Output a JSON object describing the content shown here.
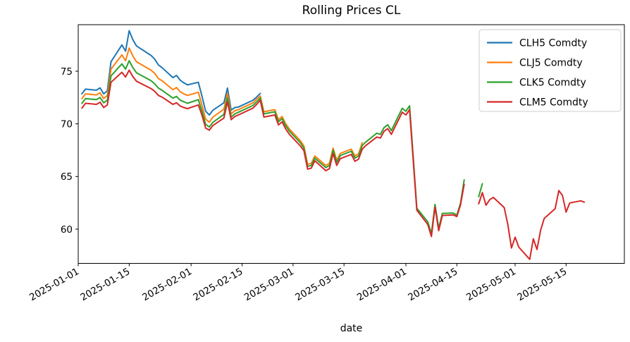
{
  "chart_data": {
    "type": "line",
    "title": "Rolling Prices CL",
    "xlabel": "date",
    "ylabel": "",
    "grid": false,
    "legend_position": "upper right",
    "xlim": [
      "2025-01-01",
      "2025-05-31"
    ],
    "ylim": [
      56.75,
      79.42
    ],
    "yticks": [
      60,
      65,
      70,
      75
    ],
    "xticks": [
      "2025-01-01",
      "2025-01-15",
      "2025-02-01",
      "2025-02-15",
      "2025-03-01",
      "2025-03-15",
      "2025-04-01",
      "2025-04-15",
      "2025-05-01",
      "2025-05-15"
    ],
    "x_tick_rotation_deg": 30,
    "dates": [
      "2025-01-02",
      "2025-01-03",
      "2025-01-06",
      "2025-01-07",
      "2025-01-08",
      "2025-01-09",
      "2025-01-10",
      "2025-01-13",
      "2025-01-14",
      "2025-01-15",
      "2025-01-16",
      "2025-01-17",
      "2025-01-21",
      "2025-01-22",
      "2025-01-23",
      "2025-01-24",
      "2025-01-27",
      "2025-01-28",
      "2025-01-29",
      "2025-01-30",
      "2025-01-31",
      "2025-02-03",
      "2025-02-04",
      "2025-02-05",
      "2025-02-06",
      "2025-02-07",
      "2025-02-10",
      "2025-02-11",
      "2025-02-12",
      "2025-02-13",
      "2025-02-14",
      "2025-02-18",
      "2025-02-19",
      "2025-02-20",
      "2025-02-21",
      "2025-02-24",
      "2025-02-25",
      "2025-02-26",
      "2025-02-27",
      "2025-02-28",
      "2025-03-03",
      "2025-03-04",
      "2025-03-05",
      "2025-03-06",
      "2025-03-07",
      "2025-03-10",
      "2025-03-11",
      "2025-03-12",
      "2025-03-13",
      "2025-03-14",
      "2025-03-17",
      "2025-03-18",
      "2025-03-19",
      "2025-03-20",
      "2025-03-21",
      "2025-03-24",
      "2025-03-25",
      "2025-03-26",
      "2025-03-27",
      "2025-03-28",
      "2025-03-31",
      "2025-04-01",
      "2025-04-02",
      "2025-04-03",
      "2025-04-04",
      "2025-04-07",
      "2025-04-08",
      "2025-04-09",
      "2025-04-10",
      "2025-04-11",
      "2025-04-14",
      "2025-04-15",
      "2025-04-16",
      "2025-04-17",
      "2025-04-18",
      "2025-04-21",
      "2025-04-22",
      "2025-04-23",
      "2025-04-24",
      "2025-04-25",
      "2025-04-28",
      "2025-04-29",
      "2025-04-30",
      "2025-05-01",
      "2025-05-02",
      "2025-05-05",
      "2025-05-06",
      "2025-05-07",
      "2025-05-08",
      "2025-05-09",
      "2025-05-12",
      "2025-05-13",
      "2025-05-14",
      "2025-05-15",
      "2025-05-16",
      "2025-05-19",
      "2025-05-20"
    ],
    "series": [
      {
        "name": "CLH5 Comdty",
        "color": "#1f77b4",
        "values": [
          72.86,
          73.3,
          73.2,
          73.42,
          72.85,
          73.15,
          75.9,
          77.5,
          76.9,
          78.85,
          78.0,
          77.4,
          76.5,
          76.15,
          75.6,
          75.35,
          74.4,
          74.6,
          74.15,
          73.9,
          73.7,
          73.95,
          72.6,
          71.2,
          70.85,
          71.3,
          72.0,
          73.4,
          71.3,
          71.55,
          71.6,
          72.25,
          72.55,
          72.9,
          null,
          null,
          null,
          null,
          null,
          null,
          null,
          null,
          null,
          null,
          null,
          null,
          null,
          null,
          null,
          null,
          null,
          null,
          null,
          null,
          null,
          null,
          null,
          null,
          null,
          null,
          null,
          null,
          null,
          null,
          null,
          null,
          null,
          null,
          null,
          null,
          null,
          null,
          null,
          null,
          null,
          null,
          null,
          null,
          null,
          null,
          null,
          null,
          null,
          null,
          null,
          null,
          null,
          null,
          null,
          null,
          null,
          null,
          null,
          null,
          null,
          null,
          null
        ]
      },
      {
        "name": "CLJ5 Comdty",
        "color": "#ff7f0e",
        "values": [
          72.4,
          72.85,
          72.75,
          72.95,
          72.4,
          72.7,
          75.2,
          76.55,
          76.0,
          77.2,
          76.45,
          75.9,
          75.1,
          74.8,
          74.3,
          74.1,
          73.25,
          73.45,
          73.05,
          72.85,
          72.7,
          73.0,
          71.75,
          70.45,
          70.15,
          70.65,
          71.4,
          72.9,
          70.95,
          71.25,
          71.35,
          72.0,
          72.35,
          72.65,
          71.15,
          71.35,
          70.4,
          70.7,
          70.0,
          69.5,
          68.4,
          67.9,
          66.15,
          66.25,
          66.95,
          66.05,
          66.25,
          67.7,
          66.55,
          67.2,
          67.6,
          66.95,
          67.15,
          68.2,
          null,
          null,
          null,
          null,
          null,
          null,
          null,
          null,
          null,
          null,
          null,
          null,
          null,
          null,
          null,
          null,
          null,
          null,
          null,
          null,
          null,
          null,
          null,
          null,
          null,
          null,
          null,
          null,
          null,
          null,
          null,
          null,
          null,
          null,
          null,
          null,
          null,
          null,
          null,
          null,
          null,
          null,
          null
        ]
      },
      {
        "name": "CLK5 Comdty",
        "color": "#2ca02c",
        "values": [
          71.95,
          72.4,
          72.3,
          72.5,
          72.0,
          72.25,
          74.55,
          75.7,
          75.2,
          76.0,
          75.35,
          74.85,
          74.1,
          73.8,
          73.4,
          73.2,
          72.45,
          72.6,
          72.25,
          72.1,
          71.95,
          72.3,
          71.2,
          69.95,
          69.7,
          70.15,
          70.9,
          72.45,
          70.65,
          70.95,
          71.1,
          71.75,
          72.1,
          72.45,
          70.95,
          71.15,
          70.2,
          70.5,
          69.8,
          69.3,
          68.2,
          67.7,
          65.95,
          66.05,
          66.75,
          65.85,
          66.05,
          67.5,
          66.35,
          67.0,
          67.4,
          66.75,
          66.95,
          67.95,
          68.28,
          69.11,
          69.0,
          69.65,
          69.92,
          69.36,
          71.48,
          71.2,
          71.71,
          66.95,
          61.99,
          60.7,
          59.58,
          62.35,
          60.07,
          61.5,
          61.53,
          61.33,
          62.47,
          64.68,
          null,
          63.08,
          64.32,
          null,
          null,
          null,
          null,
          null,
          null,
          null,
          null,
          null,
          null,
          null,
          null,
          null,
          null,
          null,
          null,
          null,
          null,
          null,
          null
        ]
      },
      {
        "name": "CLM5 Comdty",
        "color": "#d62728",
        "values": [
          71.5,
          71.95,
          71.85,
          72.05,
          71.55,
          71.8,
          73.95,
          74.9,
          74.45,
          75.1,
          74.5,
          74.05,
          73.35,
          73.1,
          72.7,
          72.55,
          71.85,
          72.0,
          71.7,
          71.55,
          71.45,
          71.8,
          70.8,
          69.6,
          69.4,
          69.85,
          70.55,
          72.1,
          70.4,
          70.7,
          70.85,
          71.5,
          71.85,
          72.25,
          70.65,
          70.85,
          69.9,
          70.2,
          69.5,
          69.0,
          67.9,
          67.45,
          65.7,
          65.8,
          66.5,
          65.55,
          65.75,
          67.2,
          66.05,
          66.7,
          67.1,
          66.45,
          66.65,
          67.6,
          67.95,
          68.75,
          68.65,
          69.3,
          69.55,
          69.0,
          71.1,
          70.85,
          71.35,
          66.6,
          61.8,
          60.45,
          59.3,
          62.1,
          59.85,
          61.3,
          61.35,
          61.2,
          62.3,
          64.25,
          null,
          62.41,
          63.47,
          62.27,
          62.79,
          63.02,
          62.05,
          60.42,
          58.21,
          59.24,
          58.29,
          57.13,
          59.09,
          58.07,
          59.91,
          61.02,
          61.95,
          63.67,
          63.19,
          61.62,
          62.49,
          62.69,
          62.56
        ]
      }
    ]
  }
}
